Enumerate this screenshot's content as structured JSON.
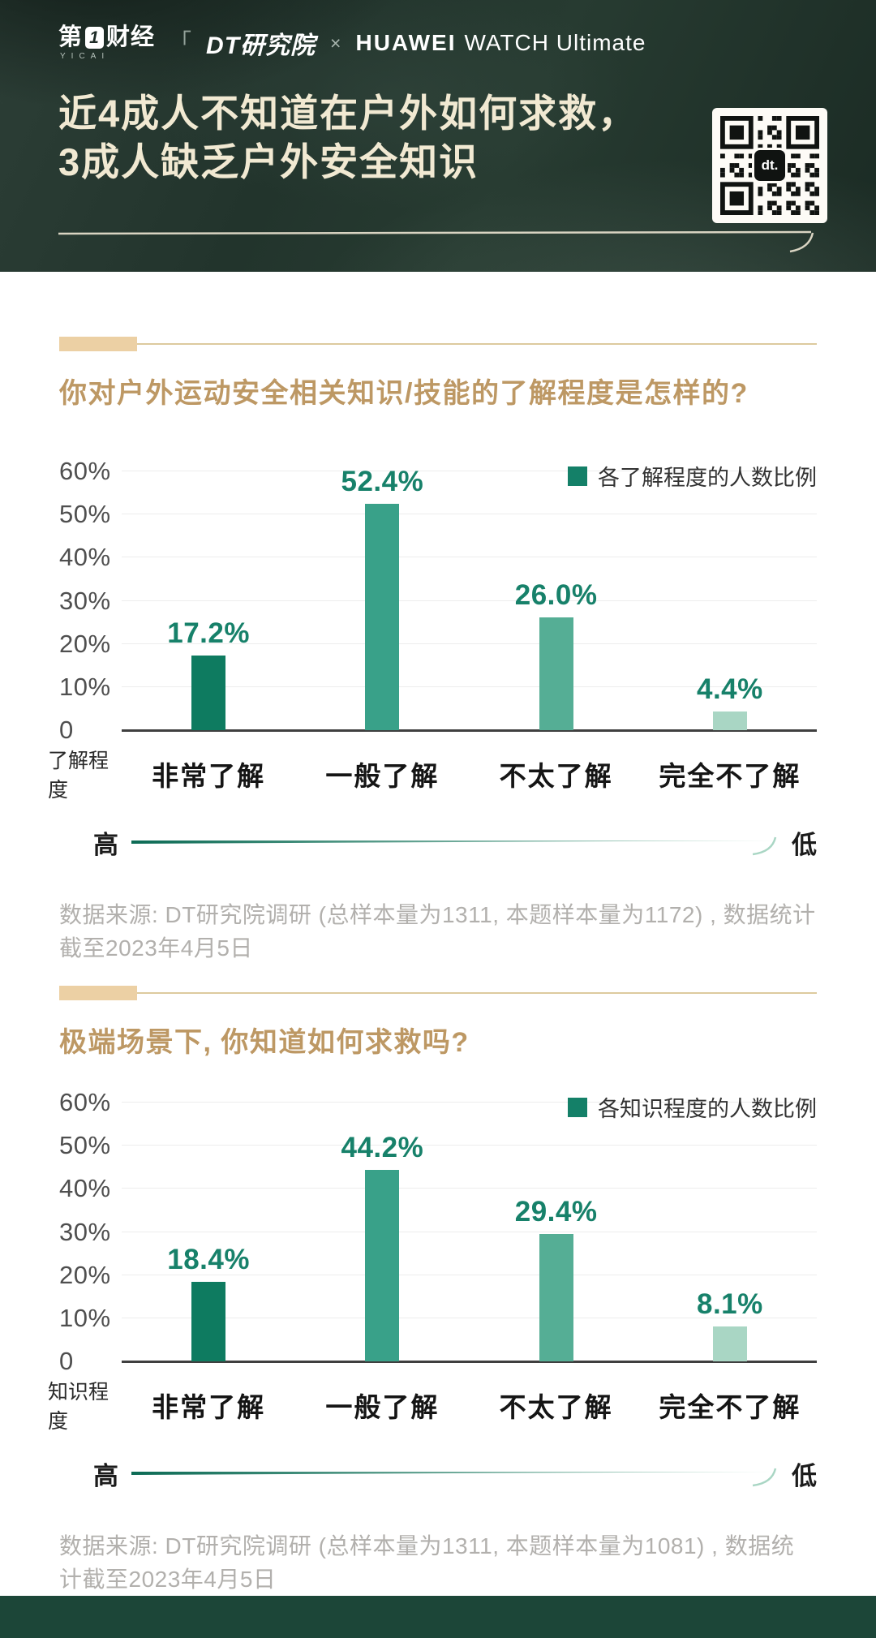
{
  "header": {
    "logo_yicai": {
      "text_pre": "第",
      "text_one": "1",
      "text_post": "财经",
      "sub": "YICAI"
    },
    "separator": "「",
    "logo_dt": "DT研究院",
    "cross": "×",
    "logo_huawei": "HUAWEI",
    "logo_huawei_product": "WATCH Ultimate",
    "headline_line1": "近4成人不知道在户外如何求救，",
    "headline_line2": "3成人缺乏户外安全知识",
    "qr_center_label": "dt."
  },
  "sections": [
    {
      "title": "你对户外运动安全相关知识/技能的了解程度是怎样的?",
      "source_line": "数据来源: DT研究院调研 (总样本量为1311, 本题样本量为1172) , 数据统计截至2023年4月5日"
    },
    {
      "title": "极端场景下, 你知道如何求救吗?",
      "source_line": "数据来源: DT研究院调研 (总样本量为1311, 本题样本量为1081) , 数据统计截至2023年4月5日"
    }
  ],
  "chart_data": [
    {
      "type": "bar",
      "title": "你对户外运动安全相关知识/技能的了解程度是怎样的?",
      "legend": "各了解程度的人数比例",
      "categories": [
        "非常了解",
        "一般了解",
        "不太了解",
        "完全不了解"
      ],
      "values": [
        17.2,
        52.4,
        26.0,
        4.4
      ],
      "value_labels": [
        "17.2%",
        "52.4%",
        "26.0%",
        "4.4%"
      ],
      "xlabel": "了解程度",
      "x_direction": {
        "high": "高",
        "low": "低"
      },
      "ylim": [
        0,
        60
      ],
      "yticks": [
        {
          "v": 60,
          "label": "60%"
        },
        {
          "v": 50,
          "label": "50%"
        },
        {
          "v": 40,
          "label": "40%"
        },
        {
          "v": 30,
          "label": "30%"
        },
        {
          "v": 20,
          "label": "20%"
        },
        {
          "v": 10,
          "label": "10%"
        },
        {
          "v": 0,
          "label": "0"
        }
      ],
      "bar_colors": [
        "#0e7b60",
        "#39a189",
        "#55ae95",
        "#a9d6c4"
      ],
      "grid": true,
      "legend_position": "top-right"
    },
    {
      "type": "bar",
      "title": "极端场景下, 你知道如何求救吗?",
      "legend": "各知识程度的人数比例",
      "categories": [
        "非常了解",
        "一般了解",
        "不太了解",
        "完全不了解"
      ],
      "values": [
        18.4,
        44.2,
        29.4,
        8.1
      ],
      "value_labels": [
        "18.4%",
        "44.2%",
        "29.4%",
        "8.1%"
      ],
      "xlabel": "知识程度",
      "x_direction": {
        "high": "高",
        "low": "低"
      },
      "ylim": [
        0,
        60
      ],
      "yticks": [
        {
          "v": 60,
          "label": "60%"
        },
        {
          "v": 50,
          "label": "50%"
        },
        {
          "v": 40,
          "label": "40%"
        },
        {
          "v": 30,
          "label": "30%"
        },
        {
          "v": 20,
          "label": "20%"
        },
        {
          "v": 10,
          "label": "10%"
        },
        {
          "v": 0,
          "label": "0"
        }
      ],
      "bar_colors": [
        "#0e7b60",
        "#39a189",
        "#55ae95",
        "#a9d6c4"
      ],
      "grid": true,
      "legend_position": "top-right"
    }
  ],
  "colors": {
    "accent_gold": "#bd9864",
    "marker_tan": "#ecd0a4",
    "rule_line": "#ddca9e",
    "value_green": "#17816a",
    "legend_green": "#148068",
    "axis_line": "#3f3f3f",
    "gridline": "#ededed",
    "source_gray": "#b2b0ad",
    "footer_green": "#1c4638",
    "header_bg": "#233630",
    "headline_cream": "#f1e9d2",
    "arrow_dark": "#0c6b55",
    "arrow_light": "#cfe8dd"
  }
}
